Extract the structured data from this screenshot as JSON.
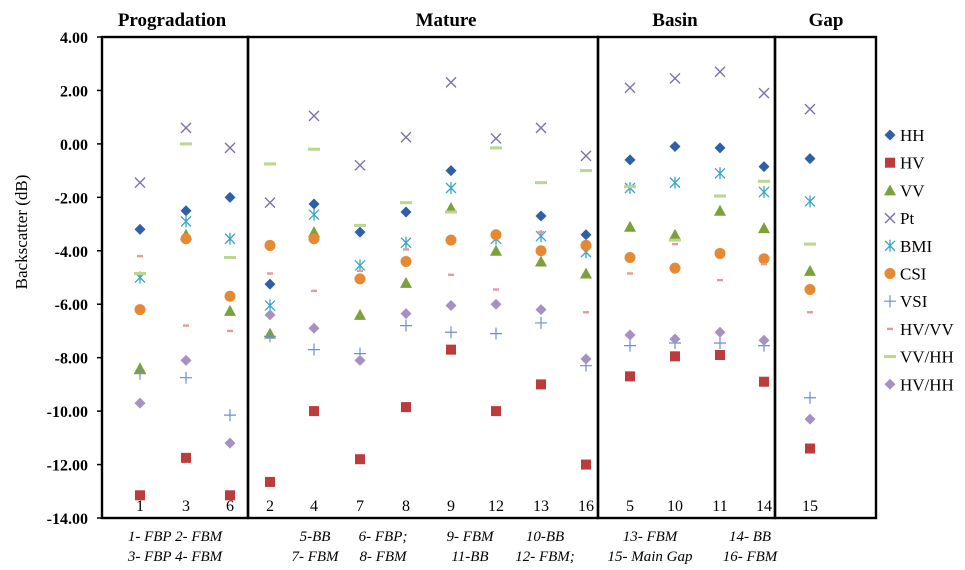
{
  "chart_data": {
    "type": "scatter",
    "ylabel": "Backscatter (dB)",
    "ylim": [
      -14,
      4
    ],
    "y_ticks": [
      "4.00",
      "2.00",
      "0.00",
      "-2.00",
      "-4.00",
      "-6.00",
      "-8.00",
      "-10.00",
      "-12.00",
      "-14.00"
    ],
    "grid": false,
    "legend_position": "right",
    "categories": [
      "1",
      "3",
      "6",
      "2",
      "4",
      "7",
      "8",
      "9",
      "12",
      "13",
      "16",
      "5",
      "10",
      "11",
      "14",
      "15"
    ],
    "groups": [
      {
        "name": "Progradation",
        "count": 3
      },
      {
        "name": "Mature",
        "count": 8
      },
      {
        "name": "Basin",
        "count": 4
      },
      {
        "name": "Gap",
        "count": 1
      }
    ],
    "series": [
      {
        "name": "HH",
        "color": "#2E5FA8",
        "marker": "diamond",
        "values": [
          -3.2,
          -2.5,
          -2.0,
          -5.25,
          -2.25,
          -3.3,
          -2.55,
          -1.0,
          -3.4,
          -2.7,
          -3.4,
          -0.6,
          -0.1,
          -0.15,
          -0.85,
          -0.55
        ]
      },
      {
        "name": "HV",
        "color": "#BE3B3B",
        "marker": "square",
        "values": [
          -13.15,
          -11.75,
          -13.15,
          -12.65,
          -10.0,
          -11.8,
          -9.85,
          -7.7,
          -10.0,
          -9.0,
          -12.0,
          -8.7,
          -7.95,
          -7.9,
          -8.9,
          -11.4
        ]
      },
      {
        "name": "VV",
        "color": "#7BA13A",
        "marker": "triangle",
        "values": [
          -8.4,
          -3.4,
          -6.25,
          -7.1,
          -3.3,
          -6.4,
          -5.2,
          -2.4,
          -4.0,
          -4.4,
          -4.85,
          -3.1,
          -3.4,
          -2.5,
          -3.15,
          -4.75
        ]
      },
      {
        "name": "Pt",
        "color": "#7F6FB0",
        "marker": "x",
        "values": [
          -1.45,
          0.6,
          -0.15,
          -2.2,
          1.05,
          -0.8,
          0.25,
          2.3,
          0.2,
          0.6,
          -0.45,
          2.1,
          2.45,
          2.7,
          1.9,
          1.3
        ]
      },
      {
        "name": "BMI",
        "color": "#37A6C8",
        "marker": "asterisk",
        "values": [
          -5.0,
          -2.9,
          -3.55,
          -6.05,
          -2.65,
          -4.55,
          -3.7,
          -1.65,
          -3.55,
          -3.45,
          -4.05,
          -1.65,
          -1.45,
          -1.1,
          -1.8,
          -2.15
        ]
      },
      {
        "name": "CSI",
        "color": "#E58A33",
        "marker": "circle",
        "values": [
          -6.2,
          -3.55,
          -5.7,
          -3.8,
          -3.55,
          -5.05,
          -4.4,
          -3.6,
          -3.4,
          -4.0,
          -3.8,
          -4.25,
          -4.65,
          -4.1,
          -4.3,
          -5.45
        ]
      },
      {
        "name": "VSI",
        "color": "#6B8FD6",
        "marker": "plus",
        "values": [
          -8.6,
          -8.75,
          -10.15,
          -7.2,
          -7.7,
          -7.85,
          -6.8,
          -7.05,
          -7.1,
          -6.7,
          -8.3,
          -7.55,
          -7.45,
          -7.45,
          -7.55,
          -9.5
        ]
      },
      {
        "name": "HV/VV",
        "color": "#E89A9A",
        "marker": "dash",
        "values": [
          -4.2,
          -6.8,
          -7.0,
          -4.85,
          -5.5,
          -4.75,
          -3.95,
          -4.9,
          -5.45,
          -3.3,
          -6.3,
          -4.85,
          -3.75,
          -5.1,
          -4.5,
          -6.3
        ]
      },
      {
        "name": "VV/HH",
        "color": "#BCD58F",
        "marker": "bar",
        "values": [
          -4.85,
          0.0,
          -4.25,
          -0.75,
          -0.2,
          -3.05,
          -2.2,
          -2.55,
          -0.15,
          -1.45,
          -1.0,
          -1.6,
          -3.6,
          -1.95,
          -1.4,
          -3.75
        ]
      },
      {
        "name": "HV/HH",
        "color": "#A691C4",
        "marker": "diamond",
        "values": [
          -9.7,
          -8.1,
          -11.2,
          -6.4,
          -6.9,
          -8.1,
          -6.35,
          -6.05,
          -6.0,
          -6.2,
          -8.05,
          -7.15,
          -7.3,
          -7.05,
          -7.35,
          -10.3
        ]
      }
    ],
    "annotations": [
      {
        "lines": [
          "1- FBP  2- FBM",
          "3- FBP  4- FBM"
        ]
      },
      {
        "lines": [
          "5-BB",
          "7- FBM"
        ]
      },
      {
        "lines": [
          "6- FBP;",
          "8- FBM"
        ]
      },
      {
        "lines": [
          "9- FBM",
          "11-BB"
        ]
      },
      {
        "lines": [
          "10-BB",
          "12- FBM;"
        ]
      },
      {
        "lines": [
          "13- FBM",
          "15- Main Gap"
        ]
      },
      {
        "lines": [
          "14- BB",
          "16- FBM"
        ]
      }
    ]
  }
}
